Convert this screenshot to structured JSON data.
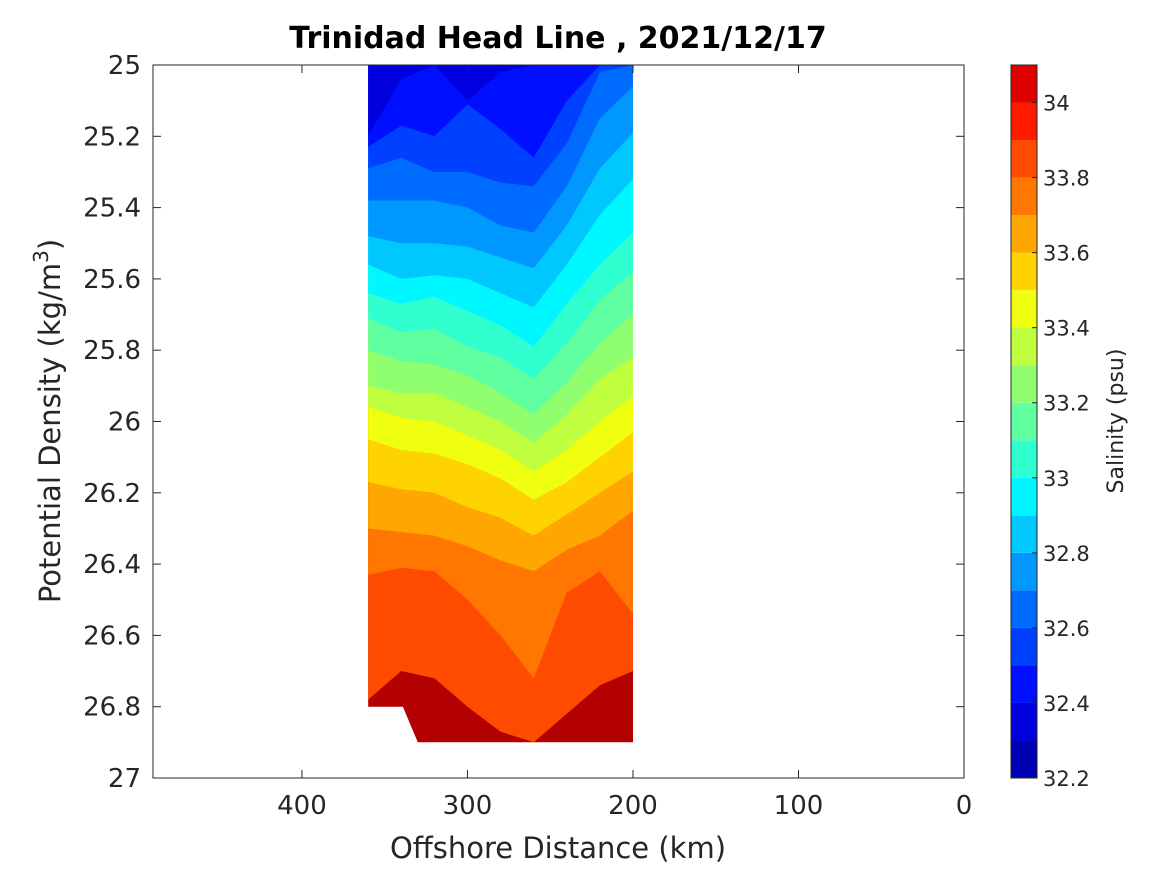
{
  "chart_data": {
    "type": "heatmap",
    "subtype": "filled-contour",
    "title": "Trinidad Head Line , 2021/12/17",
    "xlabel": "Offshore Distance (km)",
    "ylabel_main": "Potential Density (kg/m",
    "ylabel_sup": "3",
    "ylabel_close": ")",
    "x_reversed": true,
    "y_reversed": true,
    "xlim": [
      490,
      0
    ],
    "ylim": [
      25,
      27
    ],
    "xticks": [
      400,
      300,
      200,
      100,
      0
    ],
    "xtick_labels": [
      "400",
      "300",
      "200",
      "100",
      "0"
    ],
    "yticks": [
      25,
      25.2,
      25.4,
      25.6,
      25.8,
      26,
      26.2,
      26.4,
      26.6,
      26.8,
      27
    ],
    "ytick_labels": [
      "25",
      "25.2",
      "25.4",
      "25.6",
      "25.8",
      "26",
      "26.2",
      "26.4",
      "26.6",
      "26.8",
      "27"
    ],
    "grid": false,
    "colorbar": {
      "label": "Salinity (psu)",
      "range": [
        32.2,
        34.1
      ],
      "step": 0.1,
      "ticks": [
        32.2,
        32.4,
        32.6,
        32.8,
        33,
        33.2,
        33.4,
        33.6,
        33.8,
        34
      ],
      "tick_labels": [
        "32.2",
        "32.4",
        "32.6",
        "32.8",
        "33",
        "33.2",
        "33.4",
        "33.6",
        "33.8",
        "34"
      ],
      "colors": [
        "#00008f",
        "#0000b3",
        "#0000df",
        "#0010ff",
        "#0040ff",
        "#006cff",
        "#0098ff",
        "#00c8ff",
        "#00f7ff",
        "#30ffcf",
        "#60ff9f",
        "#90ff6f",
        "#c0ff3f",
        "#f0ff0f",
        "#ffd300",
        "#ffa700",
        "#ff7700",
        "#ff4b00",
        "#ff1b00",
        "#df0000",
        "#b30000"
      ]
    },
    "data_extent": {
      "x_range_km": [
        360,
        200
      ],
      "bottom_boundary": [
        [
          360,
          26.8
        ],
        [
          339,
          26.8
        ],
        [
          330,
          26.9
        ],
        [
          200,
          26.9
        ]
      ]
    },
    "stations_km": [
      360,
      340,
      320,
      300,
      280,
      260,
      240,
      220,
      200
    ],
    "level_boundaries": [
      {
        "level": 32.5,
        "depths": [
          25.2,
          25.04,
          25.0,
          25.1,
          25.02,
          25.0,
          25.0,
          25.0,
          25.0
        ]
      },
      {
        "level": 32.6,
        "depths": [
          25.23,
          25.17,
          25.2,
          25.11,
          25.18,
          25.26,
          25.1,
          25.0,
          25.0
        ]
      },
      {
        "level": 32.7,
        "depths": [
          25.29,
          25.26,
          25.3,
          25.3,
          25.33,
          25.34,
          25.22,
          25.02,
          25.0
        ]
      },
      {
        "level": 32.8,
        "depths": [
          25.38,
          25.38,
          25.38,
          25.4,
          25.45,
          25.47,
          25.34,
          25.15,
          25.06
        ]
      },
      {
        "level": 32.9,
        "depths": [
          25.48,
          25.5,
          25.5,
          25.51,
          25.54,
          25.57,
          25.45,
          25.29,
          25.19
        ]
      },
      {
        "level": 33.0,
        "depths": [
          25.56,
          25.6,
          25.59,
          25.6,
          25.64,
          25.68,
          25.56,
          25.42,
          25.32
        ]
      },
      {
        "level": 33.1,
        "depths": [
          25.64,
          25.67,
          25.65,
          25.69,
          25.73,
          25.79,
          25.67,
          25.56,
          25.47
        ]
      },
      {
        "level": 33.2,
        "depths": [
          25.71,
          25.75,
          25.74,
          25.79,
          25.82,
          25.88,
          25.78,
          25.66,
          25.58
        ]
      },
      {
        "level": 33.3,
        "depths": [
          25.8,
          25.83,
          25.84,
          25.87,
          25.92,
          25.98,
          25.89,
          25.78,
          25.7
        ]
      },
      {
        "level": 33.4,
        "depths": [
          25.9,
          25.92,
          25.92,
          25.96,
          26.0,
          26.06,
          25.98,
          25.88,
          25.82
        ]
      },
      {
        "level": 33.5,
        "depths": [
          25.96,
          25.99,
          26.0,
          26.04,
          26.08,
          26.14,
          26.08,
          26.0,
          25.93
        ]
      },
      {
        "level": 33.6,
        "depths": [
          26.05,
          26.08,
          26.09,
          26.12,
          26.16,
          26.22,
          26.17,
          26.1,
          26.03
        ]
      },
      {
        "level": 33.7,
        "depths": [
          26.17,
          26.19,
          26.2,
          26.24,
          26.27,
          26.32,
          26.26,
          26.2,
          26.14
        ]
      },
      {
        "level": 33.8,
        "depths": [
          26.3,
          26.31,
          26.32,
          26.35,
          26.39,
          26.42,
          26.36,
          26.32,
          26.25
        ]
      },
      {
        "level": 33.9,
        "depths": [
          26.43,
          26.41,
          26.42,
          26.5,
          26.6,
          26.72,
          26.48,
          26.42,
          26.54
        ]
      },
      {
        "level": 34.0,
        "depths": [
          26.78,
          26.7,
          26.72,
          26.8,
          26.87,
          26.9,
          26.82,
          26.74,
          26.7
        ]
      }
    ]
  }
}
